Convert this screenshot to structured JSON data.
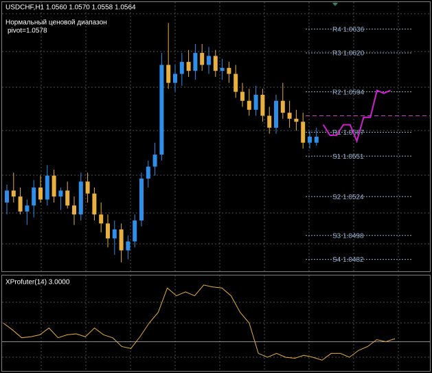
{
  "chart_data": [
    {
      "type": "candlestick",
      "title": "USDCHF,H1  1.0560 1.0570 1.0558 1.0564",
      "subtitle": "Нормальный ценовой диапазон",
      "pivot": {
        "value": 1.0578,
        "label": "pivot=1.0578",
        "color": "#d040d0"
      },
      "ylim": [
        1.0474,
        1.0654
      ],
      "up_color": "#2f8fe8",
      "down_color": "#e8b040",
      "open": [
        1.052,
        1.0528,
        1.0524,
        1.0514,
        1.0518,
        1.053,
        1.0522,
        1.0538,
        1.0524,
        1.0528,
        1.0518,
        1.0512,
        1.0534,
        1.0526,
        1.0512,
        1.0506,
        1.0496,
        1.0502,
        1.0488,
        1.0494,
        1.0508,
        1.0536,
        1.0544,
        1.0552,
        1.0612,
        1.06,
        1.0606,
        1.0614,
        1.0608,
        1.062,
        1.0612,
        1.0618,
        1.0608,
        1.061,
        1.0606,
        1.0594,
        1.0588,
        1.0582,
        1.0592,
        1.0578,
        1.057,
        1.0588,
        1.058,
        1.0576,
        1.0574,
        1.056,
        1.056
      ],
      "high": [
        1.0532,
        1.054,
        1.053,
        1.0522,
        1.0535,
        1.0538,
        1.0545,
        1.0542,
        1.053,
        1.0534,
        1.0524,
        1.054,
        1.054,
        1.053,
        1.052,
        1.0512,
        1.0508,
        1.0506,
        1.0498,
        1.0512,
        1.054,
        1.0548,
        1.056,
        1.062,
        1.064,
        1.0612,
        1.062,
        1.0622,
        1.0626,
        1.0626,
        1.0624,
        1.0622,
        1.0616,
        1.0614,
        1.0612,
        1.06,
        1.0596,
        1.0598,
        1.0596,
        1.0584,
        1.0592,
        1.06,
        1.0588,
        1.0582,
        1.058,
        1.0568,
        1.057
      ],
      "low": [
        1.0512,
        1.052,
        1.0512,
        1.0505,
        1.051,
        1.052,
        1.0518,
        1.052,
        1.0515,
        1.0516,
        1.0505,
        1.0508,
        1.052,
        1.0508,
        1.05,
        1.049,
        1.0485,
        1.048,
        1.0482,
        1.049,
        1.0504,
        1.053,
        1.0538,
        1.0548,
        1.0596,
        1.0594,
        1.0598,
        1.0604,
        1.0602,
        1.0608,
        1.0606,
        1.0604,
        1.0602,
        1.06,
        1.059,
        1.0584,
        1.0578,
        1.0578,
        1.0574,
        1.0566,
        1.0566,
        1.0576,
        1.057,
        1.0568,
        1.0556,
        1.0556,
        1.0558
      ],
      "close": [
        1.0528,
        1.0524,
        1.0514,
        1.0518,
        1.053,
        1.0522,
        1.0538,
        1.0524,
        1.0528,
        1.0518,
        1.0512,
        1.0534,
        1.0526,
        1.0512,
        1.0506,
        1.0496,
        1.0502,
        1.0488,
        1.0494,
        1.0508,
        1.0536,
        1.0544,
        1.0552,
        1.0612,
        1.06,
        1.0606,
        1.0614,
        1.0608,
        1.062,
        1.0612,
        1.0618,
        1.0608,
        1.061,
        1.0606,
        1.0594,
        1.0588,
        1.0582,
        1.0592,
        1.0578,
        1.057,
        1.0588,
        1.058,
        1.0576,
        1.0574,
        1.056,
        1.0564,
        1.0564
      ],
      "levels": [
        {
          "label": "R4 1.0636",
          "value": 1.0636
        },
        {
          "label": "R3 1.0620",
          "value": 1.062
        },
        {
          "label": "R2 1.0594",
          "value": 1.0594
        },
        {
          "label": "R1 1.0567",
          "value": 1.0567
        },
        {
          "label": "S1 1.0551",
          "value": 1.0551
        },
        {
          "label": "S2 1.0524",
          "value": 1.0524
        },
        {
          "label": "S3 1.0498",
          "value": 1.0498
        },
        {
          "label": "S4 1.0482",
          "value": 1.0482
        }
      ],
      "forecast": {
        "color": "#d020d0",
        "values": [
          1.0572,
          1.0565,
          1.0565,
          1.0572,
          1.0572,
          1.0561,
          1.0577,
          1.0577,
          1.0595,
          1.0593,
          1.0595
        ]
      }
    },
    {
      "type": "line",
      "title": "XProfuter(14) 3.0000",
      "level": 3,
      "ylim": [
        0,
        9.5
      ],
      "color": "#e8b040",
      "values": [
        4.9,
        4.2,
        3.4,
        3.5,
        3.7,
        4.4,
        3.4,
        3.7,
        3.8,
        3.5,
        4.4,
        3.7,
        3.4,
        2.5,
        2.3,
        3.5,
        4.9,
        6.0,
        8.5,
        7.7,
        8.1,
        7.7,
        8.8,
        8.6,
        8.5,
        7.7,
        6.0,
        4.9,
        1.8,
        1.4,
        1.8,
        1.4,
        1.3,
        1.6,
        1.4,
        1.1,
        1.8,
        1.8,
        1.4,
        2.1,
        2.5,
        3.2,
        3.0,
        3.3
      ]
    }
  ]
}
